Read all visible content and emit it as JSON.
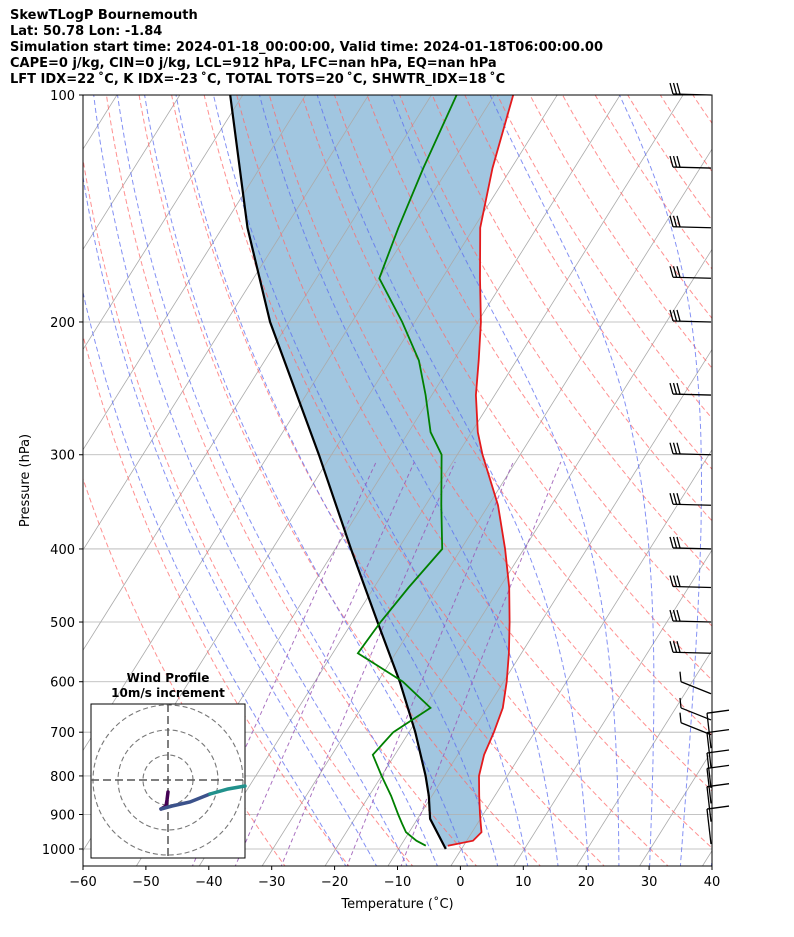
{
  "header": {
    "line1": "SkewTLogP Bournemouth",
    "line2": "Lat: 50.78   Lon: -1.84",
    "line3": "Simulation start time: 2024-01-18_00:00:00, Valid time: 2024-01-18T06:00:00.00",
    "line4": "CAPE=0 j/kg, CIN=0 j/kg, LCL=912 hPa, LFC=nan hPa, EQ=nan hPa",
    "line5": "LFT IDX=22 ˚C, K IDX=-23 ˚C, TOTAL TOTS=20 ˚C, SHWTR_IDX=18 ˚C"
  },
  "chart_data": {
    "type": "line",
    "title": "SkewTLogP Bournemouth",
    "xlabel": "Temperature (˚C)",
    "ylabel": "Pressure (hPa)",
    "xlim": [
      -60,
      40
    ],
    "ylim": [
      1050,
      100
    ],
    "x_ticks": [
      -60,
      -50,
      -40,
      -30,
      -20,
      -10,
      0,
      10,
      20,
      30,
      40
    ],
    "y_ticks": [
      100,
      200,
      300,
      400,
      500,
      600,
      700,
      800,
      900,
      1000
    ],
    "grid": true,
    "colors": {
      "temperature": "#e41a1c",
      "dewpoint": "#008000",
      "parcel": "#000000",
      "cape_cin_fill": "#a1c6e0",
      "dry_adiabat": "#ff6b6b",
      "moist_adiabat": "#5b6cf0",
      "mixing_ratio": "#9b59b6",
      "isotherm": "#aaaaaa"
    },
    "series": [
      {
        "name": "Temperature",
        "pressure": [
          990,
          975,
          950,
          925,
          900,
          850,
          800,
          750,
          700,
          650,
          600,
          550,
          500,
          450,
          400,
          350,
          300,
          280,
          250,
          225,
          200,
          175,
          150,
          125,
          100
        ],
        "temperature": [
          -2.5,
          1,
          1.5,
          0.5,
          -0.5,
          -2.5,
          -4.5,
          -5.8,
          -6.5,
          -7.5,
          -9.5,
          -12,
          -15,
          -18.5,
          -23,
          -28.5,
          -36,
          -39,
          -43,
          -46,
          -49.5,
          -54,
          -59,
          -63,
          -67
        ]
      },
      {
        "name": "Dewpoint",
        "pressure": [
          990,
          975,
          950,
          925,
          900,
          850,
          800,
          750,
          700,
          650,
          600,
          550,
          500,
          450,
          400,
          350,
          300,
          280,
          250,
          225,
          200,
          175,
          150,
          125,
          100
        ],
        "dewpoint": [
          -6,
          -8,
          -10.5,
          -12,
          -13.5,
          -16.5,
          -20,
          -23.5,
          -22.5,
          -19,
          -26,
          -36,
          -35.5,
          -34.5,
          -33,
          -37.5,
          -42.5,
          -46.5,
          -51,
          -55.5,
          -62,
          -70,
          -72,
          -74,
          -76
        ]
      },
      {
        "name": "Parcel",
        "pressure": [
          1000,
          912,
          850,
          800,
          700,
          600,
          500,
          400,
          300,
          200,
          150,
          100
        ],
        "temperature": [
          -2.5,
          -8,
          -10.5,
          -13,
          -19,
          -26.5,
          -36,
          -47.5,
          -62,
          -83,
          -96,
          -112
        ]
      }
    ],
    "wind_barbs_hPa": [
      985,
      920,
      870,
      830,
      780,
      735,
      680,
      650,
      600,
      550,
      500,
      450,
      400,
      350,
      300,
      250,
      200,
      175,
      150,
      125,
      100
    ],
    "inset": {
      "title": "Wind Profile",
      "subtitle": "10m/s increment",
      "colors": {
        "hodograph_start": "#440154",
        "hodograph_mid": "#3b528b",
        "hodograph_end": "#21918c"
      }
    }
  }
}
